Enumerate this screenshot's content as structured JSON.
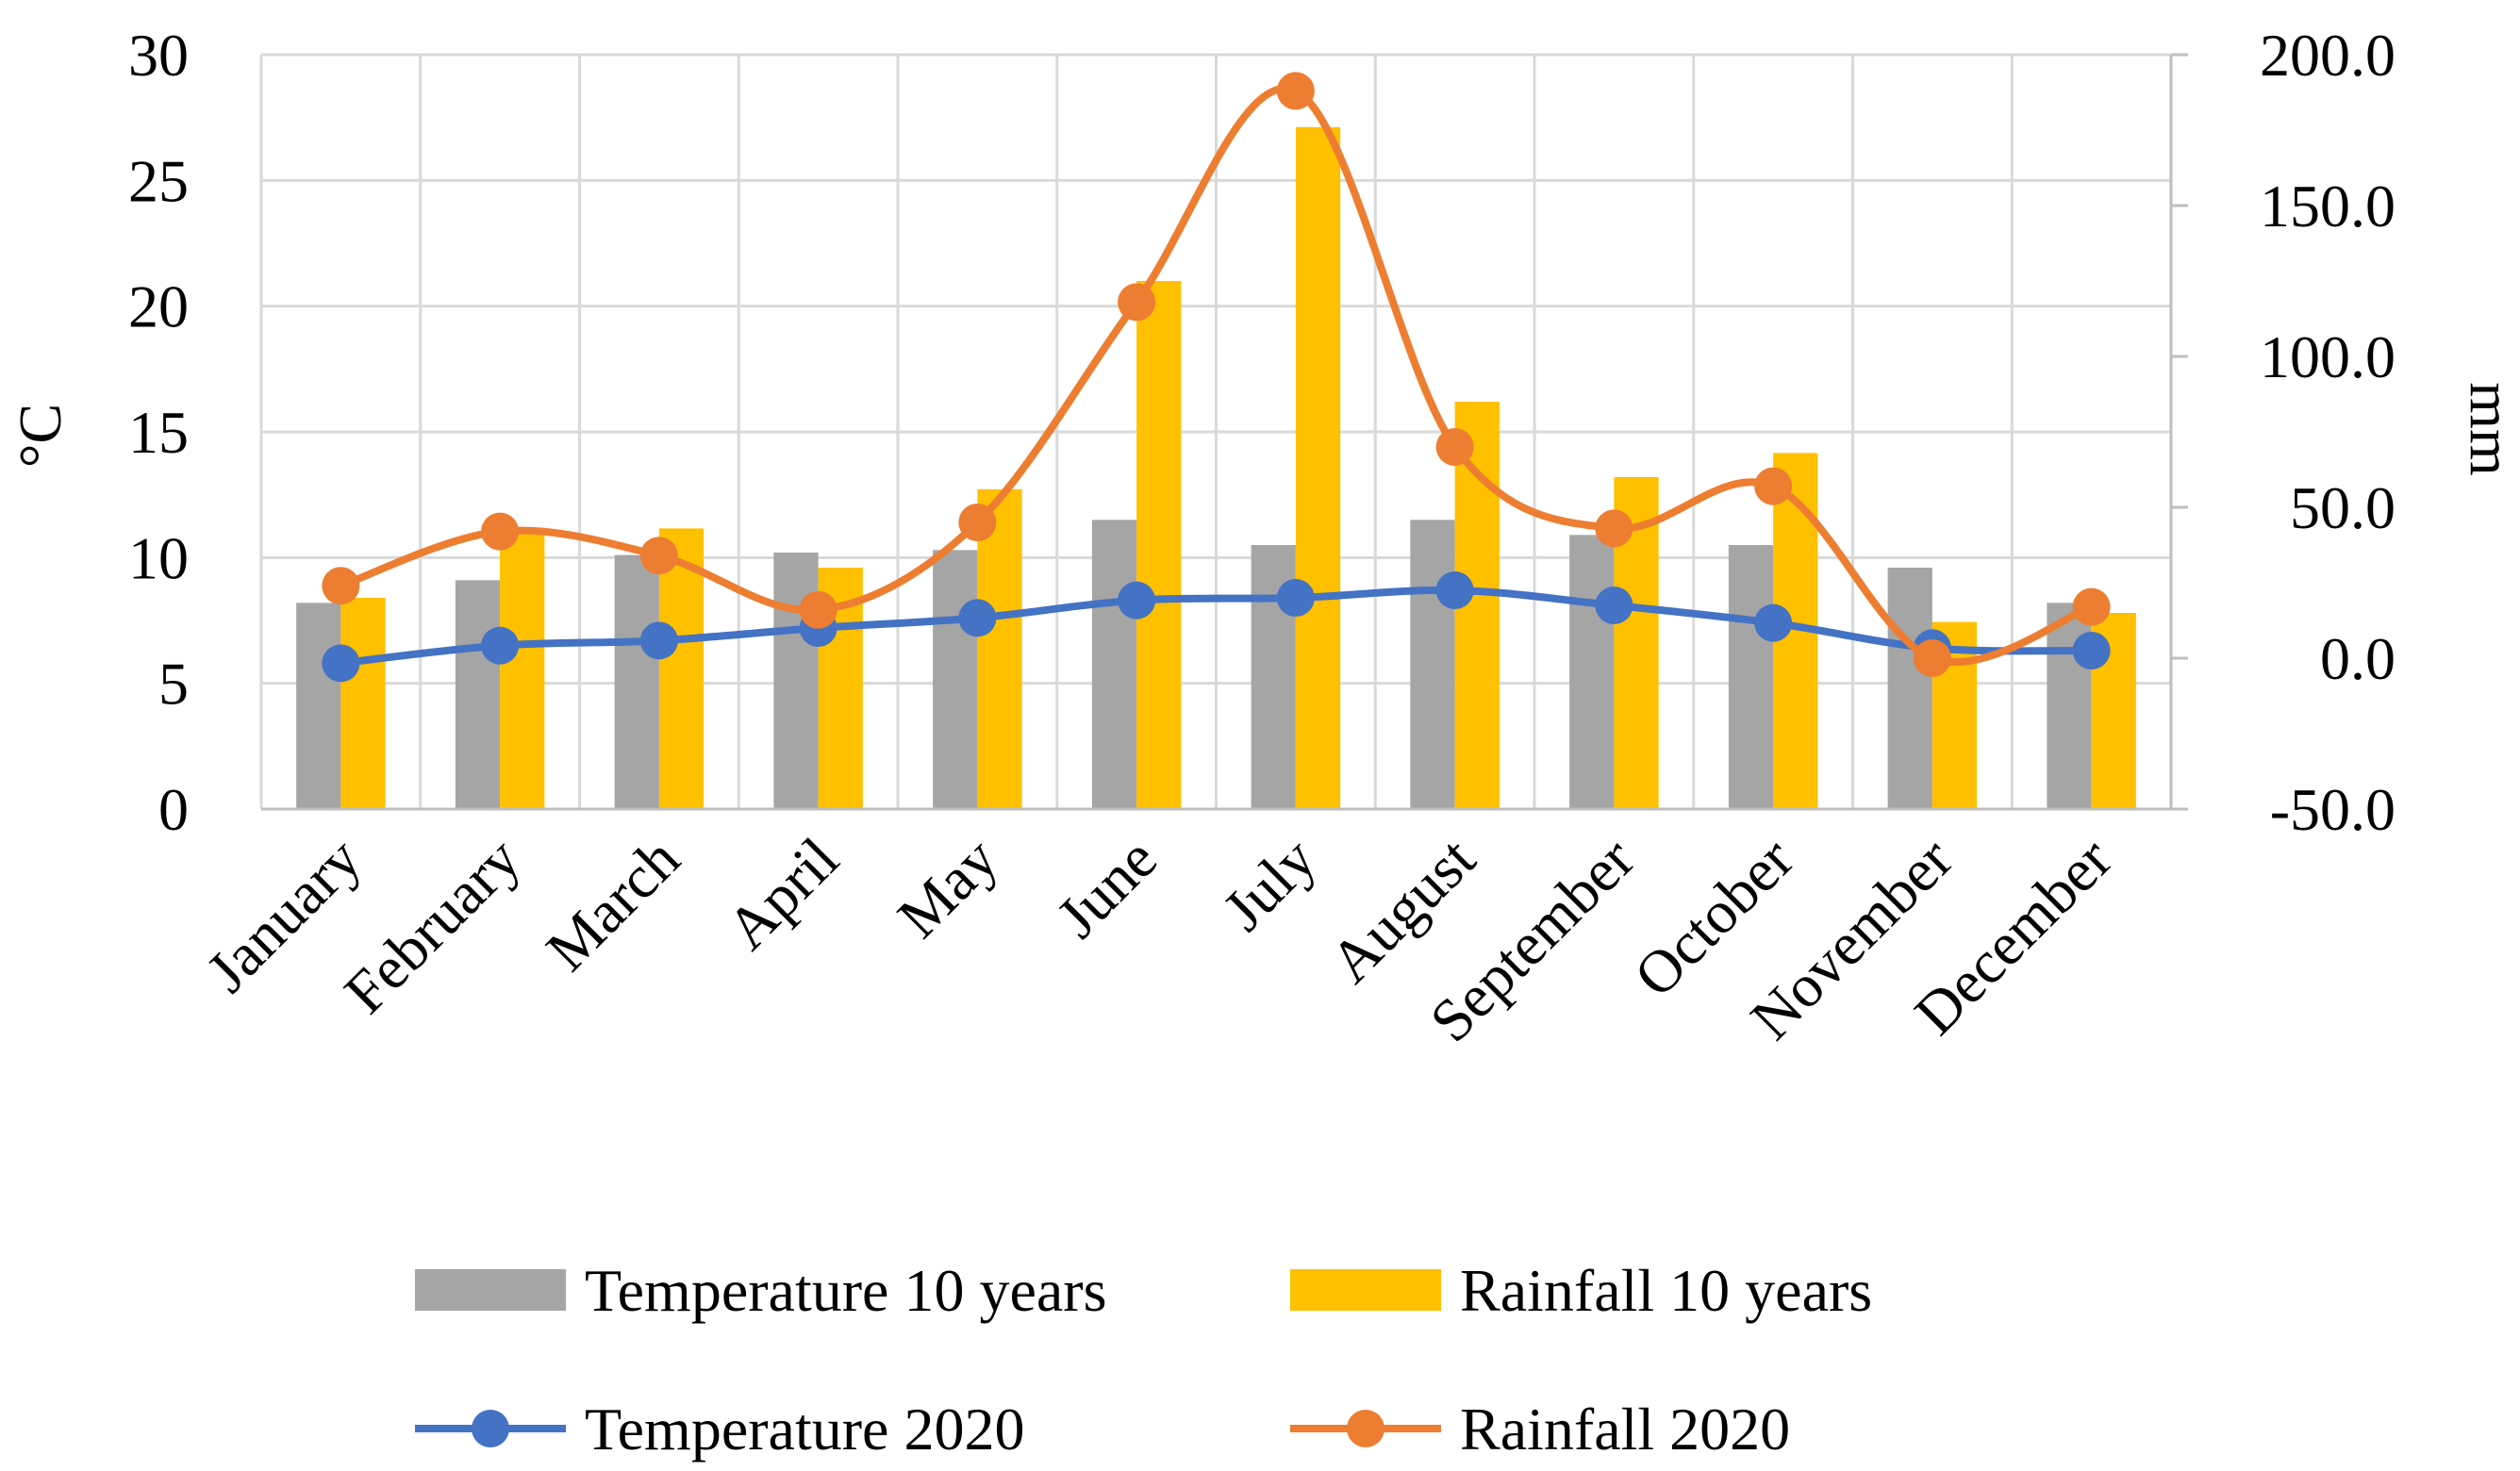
{
  "chart_data": {
    "type": "bar",
    "categories": [
      "January",
      "February",
      "March",
      "April",
      "May",
      "June",
      "July",
      "August",
      "September",
      "October",
      "November",
      "December"
    ],
    "series": [
      {
        "name": "Temperature 10 years",
        "kind": "bar",
        "axis": "left",
        "color": "#A5A5A5",
        "values": [
          8.2,
          9.1,
          10.1,
          10.2,
          10.3,
          11.5,
          10.5,
          11.5,
          10.9,
          10.5,
          9.6,
          8.2
        ]
      },
      {
        "name": "Rainfall 10 years",
        "kind": "bar",
        "axis": "right",
        "color": "#FFC000",
        "values": [
          20,
          43,
          43,
          30,
          56,
          125,
          176,
          85,
          60,
          68,
          12,
          15
        ]
      },
      {
        "name": "Temperature 2020",
        "kind": "line",
        "axis": "left",
        "color": "#4472C4",
        "values": [
          5.8,
          6.5,
          6.7,
          7.2,
          7.6,
          8.3,
          8.4,
          8.7,
          8.1,
          7.4,
          6.4,
          6.3
        ]
      },
      {
        "name": "Rainfall 2020",
        "kind": "line",
        "axis": "right",
        "color": "#ED7D31",
        "values": [
          24,
          42,
          34,
          16,
          45,
          118,
          188,
          70,
          43,
          57,
          0,
          17
        ]
      }
    ],
    "ylabel": "°C",
    "y2label": "mm",
    "ylim": [
      0,
      30
    ],
    "y2lim": [
      -50,
      200
    ],
    "yticks": [
      "0",
      "5",
      "10",
      "15",
      "20",
      "25",
      "30"
    ],
    "y2ticks": [
      "-50.0",
      "0.0",
      "50.0",
      "100.0",
      "150.0",
      "200.0"
    ],
    "grid": true,
    "legend": "bottom"
  }
}
